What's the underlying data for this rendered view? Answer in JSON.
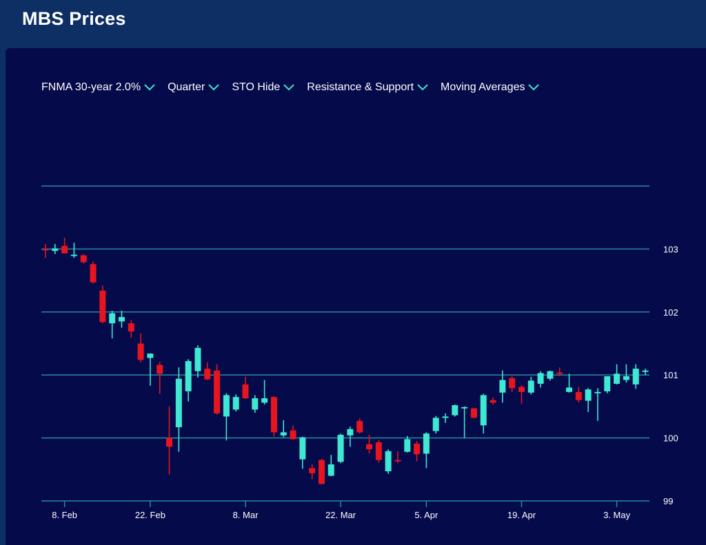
{
  "header": {
    "title": "MBS Prices"
  },
  "toolbar": {
    "items": [
      {
        "label": "FNMA 30-year 2.0%"
      },
      {
        "label": "Quarter"
      },
      {
        "label": "STO Hide"
      },
      {
        "label": "Resistance & Support"
      },
      {
        "label": "Moving Averages"
      }
    ]
  },
  "colors": {
    "up": "#3ee8d2",
    "down": "#e8141e",
    "grid": "#2a8a9c",
    "background": "#050a4a",
    "header": "#0d2f63"
  },
  "icons": {
    "dropdown": "chevron-down-icon"
  },
  "chart_data": {
    "type": "candlestick",
    "title": "MBS Prices",
    "xlabel": "",
    "ylabel": "",
    "ylim": [
      99,
      104
    ],
    "y_ticks": [
      "103",
      "102",
      "101",
      "100",
      "99"
    ],
    "x_tick_labels": [
      "8. Feb",
      "22. Feb",
      "8. Mar",
      "22. Mar",
      "5. Apr",
      "19. Apr",
      "3. May"
    ],
    "grid": true,
    "series": [
      {
        "date": "4. Feb",
        "open": 103.0,
        "high": 103.08,
        "low": 102.86,
        "close": 102.99
      },
      {
        "date": "5. Feb",
        "open": 102.97,
        "high": 103.08,
        "low": 102.92,
        "close": 103.01
      },
      {
        "date": "8. Feb",
        "open": 103.05,
        "high": 103.18,
        "low": 102.93,
        "close": 102.93
      },
      {
        "date": "9. Feb",
        "open": 102.89,
        "high": 103.1,
        "low": 102.86,
        "close": 102.91
      },
      {
        "date": "10. Feb",
        "open": 102.9,
        "high": 102.92,
        "low": 102.77,
        "close": 102.79
      },
      {
        "date": "11. Feb",
        "open": 102.76,
        "high": 102.8,
        "low": 102.45,
        "close": 102.47
      },
      {
        "date": "12. Feb",
        "open": 102.34,
        "high": 102.42,
        "low": 101.82,
        "close": 101.84
      },
      {
        "date": "16. Feb",
        "open": 101.82,
        "high": 102.02,
        "low": 101.58,
        "close": 101.98
      },
      {
        "date": "17. Feb",
        "open": 101.85,
        "high": 102.02,
        "low": 101.75,
        "close": 101.92
      },
      {
        "date": "18. Feb",
        "open": 101.82,
        "high": 101.87,
        "low": 101.59,
        "close": 101.69
      },
      {
        "date": "19. Feb",
        "open": 101.5,
        "high": 101.66,
        "low": 101.2,
        "close": 101.24
      },
      {
        "date": "22. Feb",
        "open": 101.27,
        "high": 101.34,
        "low": 100.83,
        "close": 101.34
      },
      {
        "date": "23. Feb",
        "open": 101.16,
        "high": 101.21,
        "low": 100.7,
        "close": 101.02
      },
      {
        "date": "24. Feb",
        "open": 100.0,
        "high": 100.5,
        "low": 99.42,
        "close": 99.86
      },
      {
        "date": "25. Feb",
        "open": 100.17,
        "high": 101.12,
        "low": 99.78,
        "close": 100.94
      },
      {
        "date": "26. Feb",
        "open": 100.74,
        "high": 101.25,
        "low": 100.58,
        "close": 101.22
      },
      {
        "date": "1. Mar",
        "open": 101.06,
        "high": 101.47,
        "low": 100.96,
        "close": 101.43
      },
      {
        "date": "2. Mar",
        "open": 101.1,
        "high": 101.2,
        "low": 100.92,
        "close": 100.93
      },
      {
        "date": "3. Mar",
        "open": 101.07,
        "high": 101.17,
        "low": 100.37,
        "close": 100.39
      },
      {
        "date": "4. Mar",
        "open": 100.34,
        "high": 100.71,
        "low": 99.96,
        "close": 100.68
      },
      {
        "date": "5. Mar",
        "open": 100.45,
        "high": 100.69,
        "low": 100.42,
        "close": 100.65
      },
      {
        "date": "8. Mar",
        "open": 100.85,
        "high": 100.97,
        "low": 100.62,
        "close": 100.63
      },
      {
        "date": "9. Mar",
        "open": 100.45,
        "high": 100.68,
        "low": 100.4,
        "close": 100.63
      },
      {
        "date": "10. Mar",
        "open": 100.56,
        "high": 100.92,
        "low": 100.53,
        "close": 100.63
      },
      {
        "date": "11. Mar",
        "open": 100.65,
        "high": 100.66,
        "low": 100.02,
        "close": 100.09
      },
      {
        "date": "12. Mar",
        "open": 100.04,
        "high": 100.28,
        "low": 100.01,
        "close": 100.09
      },
      {
        "date": "15. Mar",
        "open": 100.12,
        "high": 100.2,
        "low": 99.97,
        "close": 99.98
      },
      {
        "date": "16. Mar",
        "open": 99.66,
        "high": 100.02,
        "low": 99.51,
        "close": 100.01
      },
      {
        "date": "17. Mar",
        "open": 99.52,
        "high": 99.58,
        "low": 99.34,
        "close": 99.44
      },
      {
        "date": "18. Mar",
        "open": 99.65,
        "high": 99.67,
        "low": 99.26,
        "close": 99.27
      },
      {
        "date": "19. Mar",
        "open": 99.4,
        "high": 99.73,
        "low": 99.39,
        "close": 99.58
      },
      {
        "date": "22. Mar",
        "open": 99.62,
        "high": 100.07,
        "low": 99.6,
        "close": 100.05
      },
      {
        "date": "23. Mar",
        "open": 100.04,
        "high": 100.18,
        "low": 99.86,
        "close": 100.14
      },
      {
        "date": "24. Mar",
        "open": 100.27,
        "high": 100.31,
        "low": 100.07,
        "close": 100.09
      },
      {
        "date": "25. Mar",
        "open": 99.9,
        "high": 100.05,
        "low": 99.75,
        "close": 99.82
      },
      {
        "date": "26. Mar",
        "open": 99.93,
        "high": 99.97,
        "low": 99.61,
        "close": 99.65
      },
      {
        "date": "29. Mar",
        "open": 99.47,
        "high": 99.82,
        "low": 99.43,
        "close": 99.79
      },
      {
        "date": "30. Mar",
        "open": 99.65,
        "high": 99.79,
        "low": 99.6,
        "close": 99.64
      },
      {
        "date": "31. Mar",
        "open": 99.78,
        "high": 100.03,
        "low": 99.77,
        "close": 99.98
      },
      {
        "date": "1. Apr",
        "open": 99.91,
        "high": 99.95,
        "low": 99.63,
        "close": 99.74
      },
      {
        "date": "5. Apr",
        "open": 99.75,
        "high": 100.09,
        "low": 99.52,
        "close": 100.07
      },
      {
        "date": "6. Apr",
        "open": 100.11,
        "high": 100.35,
        "low": 100.07,
        "close": 100.32
      },
      {
        "date": "7. Apr",
        "open": 100.34,
        "high": 100.39,
        "low": 100.24,
        "close": 100.34
      },
      {
        "date": "8. Apr",
        "open": 100.36,
        "high": 100.53,
        "low": 100.34,
        "close": 100.52
      },
      {
        "date": "9. Apr",
        "open": 100.47,
        "high": 100.5,
        "low": 100.0,
        "close": 100.49
      },
      {
        "date": "12. Apr",
        "open": 100.47,
        "high": 100.48,
        "low": 100.31,
        "close": 100.32
      },
      {
        "date": "13. Apr",
        "open": 100.2,
        "high": 100.7,
        "low": 100.07,
        "close": 100.68
      },
      {
        "date": "14. Apr",
        "open": 100.6,
        "high": 100.64,
        "low": 100.53,
        "close": 100.56
      },
      {
        "date": "15. Apr",
        "open": 100.72,
        "high": 101.07,
        "low": 100.56,
        "close": 100.92
      },
      {
        "date": "16. Apr",
        "open": 100.95,
        "high": 100.98,
        "low": 100.73,
        "close": 100.79
      },
      {
        "date": "19. Apr",
        "open": 100.81,
        "high": 100.84,
        "low": 100.54,
        "close": 100.73
      },
      {
        "date": "20. Apr",
        "open": 100.72,
        "high": 100.97,
        "low": 100.69,
        "close": 100.91
      },
      {
        "date": "21. Apr",
        "open": 100.86,
        "high": 101.06,
        "low": 100.8,
        "close": 101.03
      },
      {
        "date": "22. Apr",
        "open": 100.94,
        "high": 101.07,
        "low": 100.91,
        "close": 101.06
      },
      {
        "date": "23. Apr",
        "open": 101.04,
        "high": 101.12,
        "low": 100.98,
        "close": 101.02
      },
      {
        "date": "26. Apr",
        "open": 100.73,
        "high": 101.02,
        "low": 100.72,
        "close": 100.8
      },
      {
        "date": "27. Apr",
        "open": 100.73,
        "high": 100.81,
        "low": 100.56,
        "close": 100.6
      },
      {
        "date": "28. Apr",
        "open": 100.59,
        "high": 100.79,
        "low": 100.41,
        "close": 100.77
      },
      {
        "date": "29. Apr",
        "open": 100.72,
        "high": 100.79,
        "low": 100.27,
        "close": 100.73
      },
      {
        "date": "30. Apr",
        "open": 100.74,
        "high": 100.98,
        "low": 100.71,
        "close": 100.98
      },
      {
        "date": "3. May",
        "open": 100.86,
        "high": 101.17,
        "low": 100.85,
        "close": 101.02
      },
      {
        "date": "4. May",
        "open": 100.92,
        "high": 101.17,
        "low": 100.88,
        "close": 100.98
      },
      {
        "date": "5. May",
        "open": 100.85,
        "high": 101.17,
        "low": 100.78,
        "close": 101.1
      },
      {
        "date": "6. May",
        "open": 101.05,
        "high": 101.1,
        "low": 101.0,
        "close": 101.07
      }
    ]
  }
}
